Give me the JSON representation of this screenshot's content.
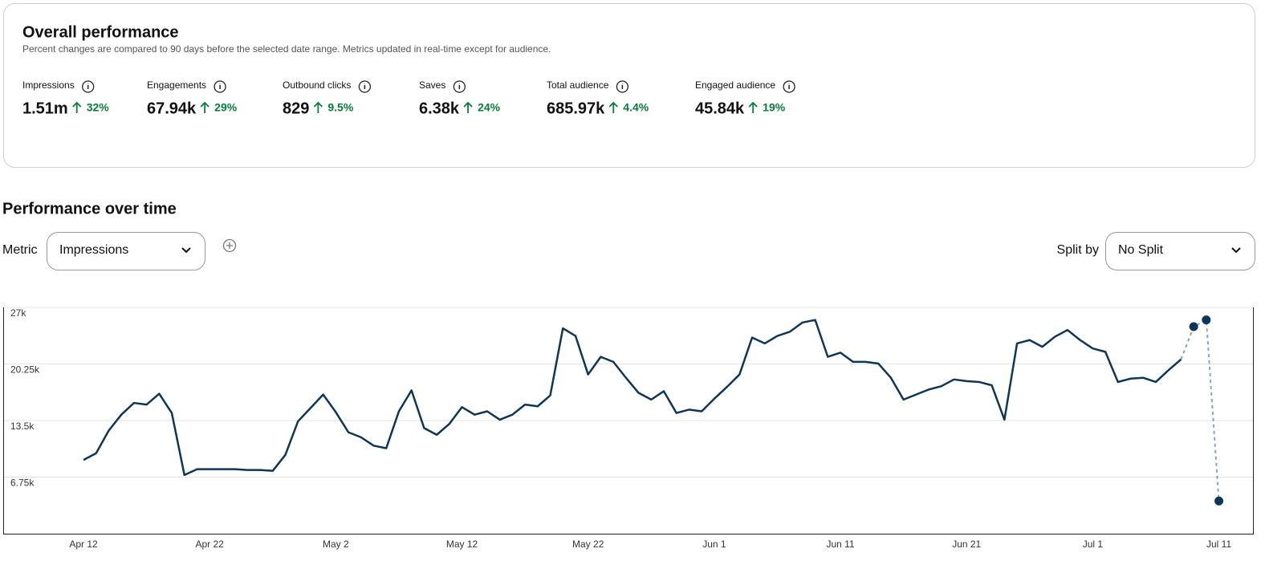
{
  "header": {
    "title": "Overall performance",
    "subtitle": "Percent changes are compared to 90 days before the selected date range. Metrics updated in real-time except for audience."
  },
  "metrics": [
    {
      "label": "Impressions",
      "value": "1.51m",
      "change": "32%"
    },
    {
      "label": "Engagements",
      "value": "67.94k",
      "change": "29%"
    },
    {
      "label": "Outbound clicks",
      "value": "829",
      "change": "9.5%"
    },
    {
      "label": "Saves",
      "value": "6.38k",
      "change": "24%"
    },
    {
      "label": "Total audience",
      "value": "685.97k",
      "change": "4.4%"
    },
    {
      "label": "Engaged audience",
      "value": "45.84k",
      "change": "19%"
    }
  ],
  "section": {
    "title": "Performance over time",
    "metric_label": "Metric",
    "metric_value": "Impressions",
    "split_label": "Split by",
    "split_value": "No Split"
  },
  "chart_data": {
    "type": "line",
    "color": "#0f3557",
    "projected_color": "#8ea3b5",
    "projected_points": 3,
    "x": [
      0,
      1,
      2,
      3,
      4,
      5,
      6,
      7,
      8,
      9,
      10,
      11,
      12,
      13,
      14,
      15,
      16,
      17,
      18,
      19,
      20,
      21,
      22,
      23,
      24,
      25,
      26,
      27,
      28,
      29,
      30,
      31,
      32,
      33,
      34,
      35,
      36,
      37,
      38,
      39,
      40,
      41,
      42,
      43,
      44,
      45,
      46,
      47,
      48,
      49,
      50,
      51,
      52,
      53,
      54,
      55,
      56,
      57,
      58,
      59,
      60,
      61,
      62,
      63,
      64,
      65,
      66,
      67,
      68,
      69,
      70,
      71,
      72,
      73,
      74,
      75,
      76,
      77,
      78,
      79,
      80,
      81,
      82,
      83,
      84,
      85,
      86,
      87,
      88,
      89,
      90
    ],
    "values": [
      8800,
      9600,
      12300,
      14200,
      15600,
      15400,
      16700,
      14400,
      7000,
      7700,
      7700,
      7700,
      7700,
      7600,
      7600,
      7500,
      9400,
      13400,
      15000,
      16600,
      14500,
      12100,
      11500,
      10500,
      10200,
      14600,
      17100,
      12600,
      11800,
      13100,
      15100,
      14200,
      14600,
      13600,
      14200,
      15400,
      15200,
      16500,
      24500,
      23600,
      19000,
      21100,
      20500,
      18600,
      16800,
      16000,
      17000,
      14400,
      14800,
      14600,
      16100,
      17500,
      19000,
      23400,
      22700,
      23600,
      24100,
      25200,
      25500,
      21100,
      21600,
      20500,
      20500,
      20300,
      18600,
      16000,
      16600,
      17200,
      17600,
      18400,
      18200,
      18100,
      17700,
      13600,
      22700,
      23100,
      22300,
      23500,
      24300,
      23100,
      22100,
      21700,
      18100,
      18500,
      18600,
      18100,
      19500,
      20800,
      24700,
      25500,
      3900
    ],
    "xlim": [
      -6.3,
      92.7
    ],
    "xticks": [
      {
        "value": 0,
        "label": "Apr 12"
      },
      {
        "value": 10,
        "label": "Apr 22"
      },
      {
        "value": 20,
        "label": "May 2"
      },
      {
        "value": 30,
        "label": "May 12"
      },
      {
        "value": 40,
        "label": "May 22"
      },
      {
        "value": 50,
        "label": "Jun 1"
      },
      {
        "value": 60,
        "label": "Jun 11"
      },
      {
        "value": 70,
        "label": "Jun 21"
      },
      {
        "value": 80,
        "label": "Jul 1"
      },
      {
        "value": 90,
        "label": "Jul 11"
      }
    ],
    "ylim": [
      0,
      27000
    ],
    "yticks": [
      {
        "value": 6750,
        "label": "6.75k"
      },
      {
        "value": 13500,
        "label": "13.5k"
      },
      {
        "value": 20250,
        "label": "20.25k"
      },
      {
        "value": 27000,
        "label": "27k"
      }
    ],
    "grid": true
  }
}
